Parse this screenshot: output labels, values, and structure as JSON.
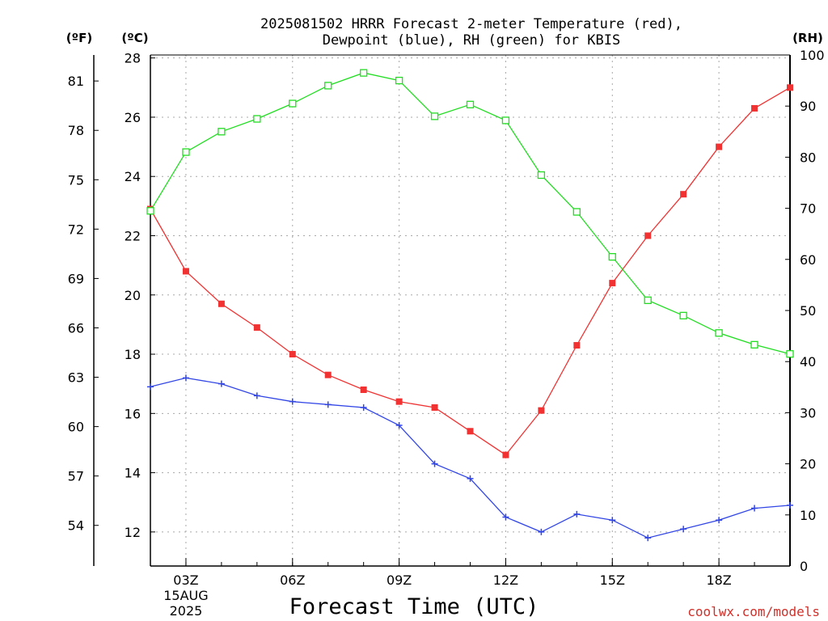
{
  "chart_data": {
    "type": "line",
    "title_lines": [
      "2025081502 HRRR Forecast 2-meter Temperature (red),",
      "Dewpoint (blue), RH (green) for KBIS"
    ],
    "xlabel": "Forecast Time (UTC)",
    "credit": "coolwx.com/models",
    "unit_labels": {
      "fahrenheit": "(ºF)",
      "celsius": "(ºC)",
      "rh": "(RH)"
    },
    "x_hours": [
      2,
      3,
      4,
      5,
      6,
      7,
      8,
      9,
      10,
      11,
      12,
      13,
      14,
      15,
      16,
      17,
      18,
      19,
      20
    ],
    "x_range": [
      2,
      20
    ],
    "x_ticks": [
      {
        "hour": 3,
        "label": "03Z"
      },
      {
        "hour": 6,
        "label": "06Z"
      },
      {
        "hour": 9,
        "label": "09Z"
      },
      {
        "hour": 12,
        "label": "12Z"
      },
      {
        "hour": 15,
        "label": "15Z"
      },
      {
        "hour": 18,
        "label": "18Z"
      }
    ],
    "date_label": [
      "15AUG",
      "2025"
    ],
    "date_label_hour": 3,
    "y_celsius_range": [
      10.85,
      28.1
    ],
    "y_celsius_ticks": [
      12,
      14,
      16,
      18,
      20,
      22,
      24,
      26,
      28
    ],
    "y_fahrenheit_ticks": [
      54,
      57,
      60,
      63,
      66,
      69,
      72,
      75,
      78,
      81
    ],
    "y_rh_range": [
      0,
      100
    ],
    "y_rh_ticks": [
      0,
      10,
      20,
      30,
      40,
      50,
      60,
      70,
      80,
      90,
      100
    ],
    "grid": true,
    "series": [
      {
        "name": "Temperature",
        "color": "#f03232",
        "marker": "filled-square",
        "axis": "celsius",
        "values": [
          22.9,
          20.8,
          19.7,
          18.9,
          18.0,
          17.3,
          16.8,
          16.4,
          16.2,
          15.4,
          14.6,
          16.1,
          18.3,
          20.4,
          22.0,
          23.4,
          25.0,
          26.3,
          27.0
        ]
      },
      {
        "name": "Dewpoint",
        "color": "#3246e6",
        "marker": "plus",
        "axis": "celsius",
        "values": [
          16.9,
          17.2,
          17.0,
          16.6,
          16.4,
          16.3,
          16.2,
          15.6,
          14.3,
          13.8,
          12.5,
          12.0,
          12.6,
          12.4,
          11.8,
          12.1,
          12.4,
          12.8,
          12.9
        ]
      },
      {
        "name": "RH",
        "color": "#22dd22",
        "marker": "open-square",
        "axis": "rh",
        "values": [
          69.5,
          81.0,
          85.0,
          87.5,
          90.5,
          94.0,
          96.5,
          95.0,
          88.0,
          90.3,
          87.2,
          76.5,
          69.3,
          60.5,
          52.0,
          49.0,
          45.6,
          43.3,
          41.5
        ]
      }
    ]
  }
}
